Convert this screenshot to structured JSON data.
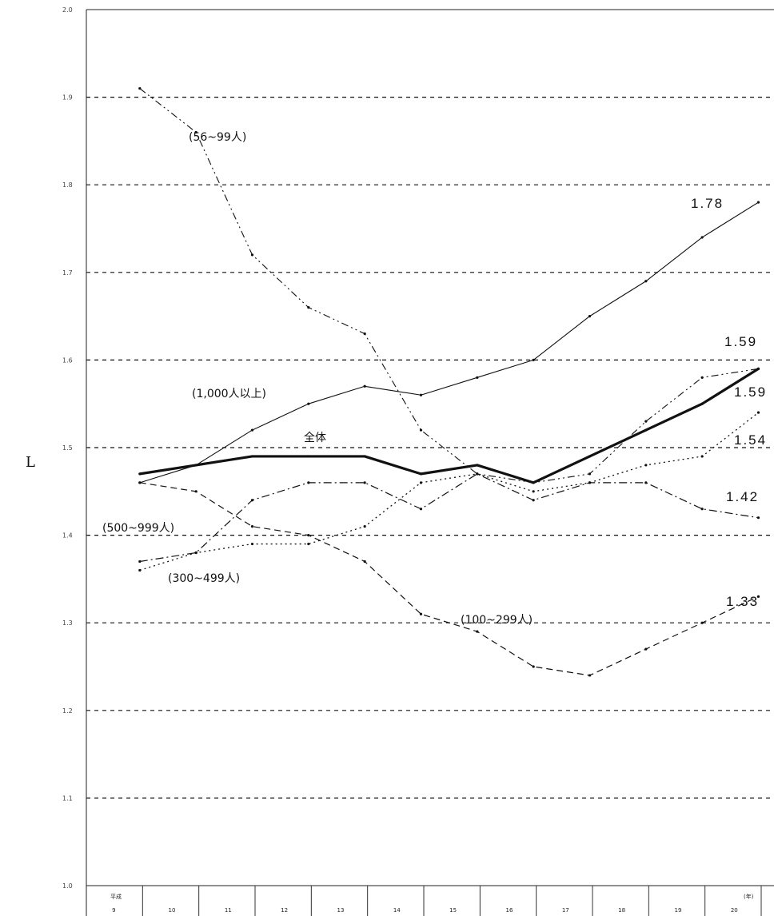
{
  "chart_data": {
    "type": "line",
    "ylabel": "L",
    "ylim": [
      1.0,
      2.0
    ],
    "y_ticks": [
      "1.0",
      "1.1",
      "1.2",
      "1.3",
      "1.4",
      "1.5",
      "1.6",
      "1.7",
      "1.8",
      "1.9",
      "2.0"
    ],
    "x_era_label": "平成",
    "x_unit_label": "(年)",
    "categories": [
      "9",
      "10",
      "11",
      "12",
      "13",
      "14",
      "15",
      "16",
      "17",
      "18",
      "19",
      "20"
    ],
    "grid": true,
    "series": [
      {
        "name": "全体",
        "values": [
          1.47,
          1.48,
          1.49,
          1.49,
          1.49,
          1.47,
          1.48,
          1.46,
          1.49,
          1.52,
          1.55,
          1.59
        ],
        "end_label": "1.59"
      },
      {
        "name": "(1,000人以上)",
        "values": [
          1.46,
          1.48,
          1.52,
          1.55,
          1.57,
          1.56,
          1.58,
          1.6,
          1.65,
          1.69,
          1.74,
          1.78
        ],
        "end_label": "1.78"
      },
      {
        "name": "(100~299人)",
        "values": [
          1.46,
          1.45,
          1.41,
          1.4,
          1.37,
          1.31,
          1.29,
          1.25,
          1.24,
          1.27,
          1.3,
          1.33
        ],
        "end_label": "1.33"
      },
      {
        "name": "(500~999人)",
        "values": [
          1.37,
          1.38,
          1.44,
          1.46,
          1.46,
          1.43,
          1.47,
          1.44,
          1.46,
          1.46,
          1.43,
          1.42
        ],
        "end_label": "1.42"
      },
      {
        "name": "(300~499人)",
        "values": [
          1.36,
          1.38,
          1.39,
          1.39,
          1.41,
          1.46,
          1.47,
          1.45,
          1.46,
          1.48,
          1.49,
          1.54
        ],
        "end_label": "1.54"
      },
      {
        "name": "(56~99人)",
        "values": [
          1.91,
          1.86,
          1.72,
          1.66,
          1.63,
          1.52,
          1.47,
          1.46,
          1.47,
          1.53,
          1.58,
          1.59
        ],
        "end_label": "1.59"
      }
    ]
  }
}
